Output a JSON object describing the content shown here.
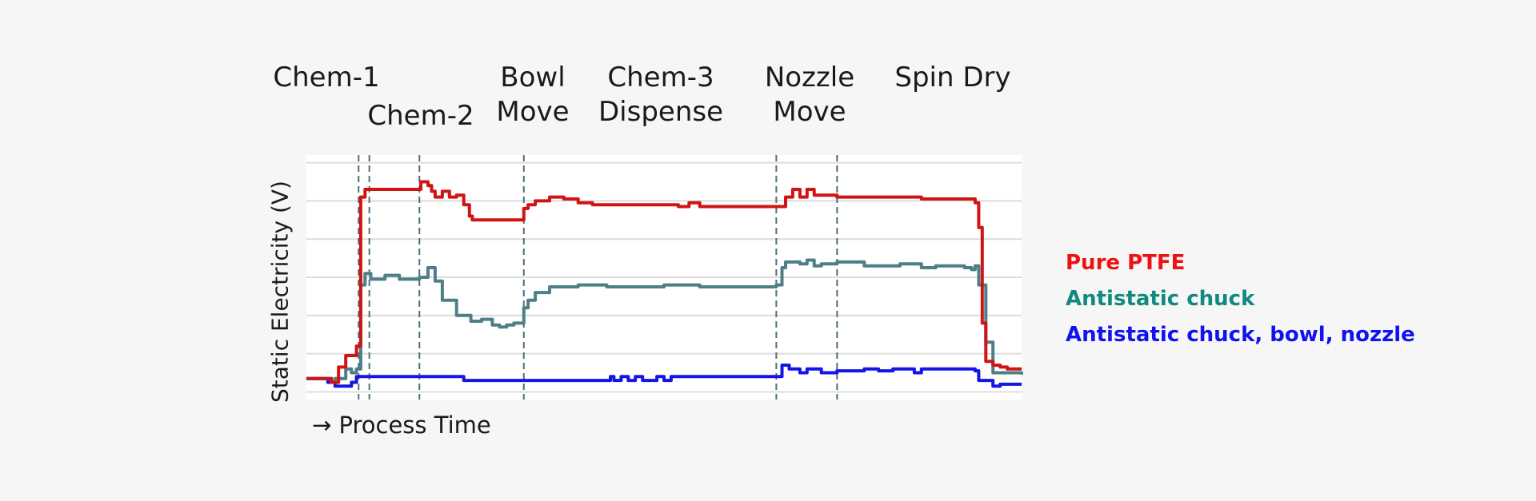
{
  "chart_data": {
    "type": "line",
    "title": "",
    "xlabel": "→ Process Time",
    "ylabel": "Static Electricity (V)",
    "xlim": [
      0,
      100
    ],
    "ylim": [
      0,
      6.4
    ],
    "grid": true,
    "legend_position": "right",
    "phases": [
      {
        "lines": [
          "Chem-1"
        ]
      },
      {
        "lines": [
          "Chem-2"
        ]
      },
      {
        "lines": [
          "Bowl",
          "Move"
        ]
      },
      {
        "lines": [
          "Chem-3",
          "Dispense"
        ]
      },
      {
        "lines": [
          "Nozzle",
          "Move"
        ]
      },
      {
        "lines": [
          "Spin Dry"
        ]
      }
    ],
    "phase_boundaries": [
      7.3,
      8.8,
      15.8,
      30.4,
      65.7,
      74.2
    ],
    "series": [
      {
        "name": "Pure PTFE",
        "color": "#d01414",
        "x": [
          0,
          2.5,
          3.5,
          4.5,
          5.5,
          6.3,
          7.0,
          7.6,
          8.2,
          8.8,
          12.0,
          15.5,
          16.0,
          17.0,
          17.5,
          18.0,
          19.0,
          20.0,
          21.0,
          22.0,
          22.8,
          23.2,
          24.0,
          28.0,
          30.0,
          30.4,
          31.0,
          32.0,
          34.0,
          36.0,
          38.0,
          40.0,
          45.0,
          52.0,
          53.5,
          55.0,
          65.7,
          67.0,
          68.0,
          69.0,
          70.0,
          71.0,
          72.0,
          74.2,
          78.0,
          83.0,
          86.0,
          92.0,
          93.5,
          94.0,
          94.5,
          95.0,
          96.0,
          97.0,
          98.0,
          98.5,
          100
        ],
        "y": [
          0.55,
          0.55,
          0.45,
          0.85,
          1.15,
          1.15,
          1.4,
          5.3,
          5.5,
          5.5,
          5.5,
          5.5,
          5.7,
          5.6,
          5.45,
          5.3,
          5.45,
          5.3,
          5.35,
          5.1,
          4.8,
          4.7,
          4.7,
          4.7,
          4.7,
          5.0,
          5.1,
          5.2,
          5.3,
          5.25,
          5.15,
          5.1,
          5.1,
          5.05,
          5.15,
          5.05,
          5.05,
          5.3,
          5.5,
          5.3,
          5.5,
          5.35,
          5.35,
          5.3,
          5.3,
          5.3,
          5.25,
          5.25,
          5.15,
          4.5,
          2.0,
          1.0,
          0.9,
          0.85,
          0.8,
          0.8,
          0.8
        ]
      },
      {
        "name": "Antistatic chuck",
        "color": "#4e7f87",
        "x": [
          0,
          2.5,
          3.5,
          4.0,
          5.5,
          6.3,
          7.0,
          7.6,
          8.2,
          9.0,
          11.0,
          13.0,
          15.8,
          17.0,
          18.0,
          19.0,
          21.0,
          23.0,
          24.5,
          26.0,
          27.0,
          28.0,
          29.0,
          30.4,
          31.0,
          32.0,
          34.0,
          38.0,
          42.0,
          46.0,
          50.0,
          55.0,
          60.0,
          65.7,
          66.5,
          67.0,
          69.0,
          70.0,
          71.0,
          72.0,
          74.2,
          78.0,
          83.0,
          86.0,
          88.0,
          92.0,
          93.0,
          93.5,
          94.0,
          95.0,
          96.0,
          100
        ],
        "y": [
          0.55,
          0.55,
          0.45,
          0.55,
          0.8,
          0.7,
          0.8,
          3.0,
          3.3,
          3.15,
          3.25,
          3.15,
          3.2,
          3.45,
          3.1,
          2.6,
          2.2,
          2.05,
          2.1,
          1.95,
          1.9,
          1.95,
          2.0,
          2.4,
          2.6,
          2.8,
          2.95,
          3.0,
          2.95,
          2.95,
          3.0,
          2.95,
          2.95,
          3.0,
          3.45,
          3.6,
          3.55,
          3.65,
          3.5,
          3.55,
          3.6,
          3.5,
          3.55,
          3.45,
          3.5,
          3.45,
          3.4,
          3.5,
          3.0,
          1.5,
          0.7,
          0.65
        ]
      },
      {
        "name": "Antistatic chuck, bowl, nozzle",
        "color": "#1515e6",
        "x": [
          0,
          2.5,
          3.0,
          4.0,
          5.5,
          6.3,
          7.0,
          8.0,
          12.0,
          17.0,
          21.0,
          22.0,
          27.0,
          30.4,
          35.0,
          40.0,
          42.5,
          43.0,
          44.0,
          45.0,
          46.0,
          47.0,
          48.0,
          49.0,
          50.0,
          51.0,
          52.0,
          55.0,
          60.0,
          65.7,
          66.5,
          67.5,
          69.0,
          70.0,
          72.0,
          74.2,
          76.0,
          78.0,
          80.0,
          82.0,
          84.0,
          85.0,
          86.0,
          87.0,
          90.0,
          93.0,
          93.5,
          94.0,
          95.0,
          96.0,
          97.0,
          100
        ],
        "y": [
          0.55,
          0.55,
          0.45,
          0.35,
          0.35,
          0.45,
          0.6,
          0.6,
          0.6,
          0.6,
          0.6,
          0.5,
          0.5,
          0.5,
          0.5,
          0.5,
          0.6,
          0.5,
          0.6,
          0.5,
          0.6,
          0.5,
          0.5,
          0.6,
          0.5,
          0.6,
          0.6,
          0.6,
          0.6,
          0.6,
          0.9,
          0.8,
          0.7,
          0.8,
          0.7,
          0.75,
          0.75,
          0.8,
          0.75,
          0.8,
          0.8,
          0.7,
          0.8,
          0.8,
          0.8,
          0.8,
          0.75,
          0.5,
          0.5,
          0.35,
          0.4,
          0.4
        ]
      }
    ]
  }
}
